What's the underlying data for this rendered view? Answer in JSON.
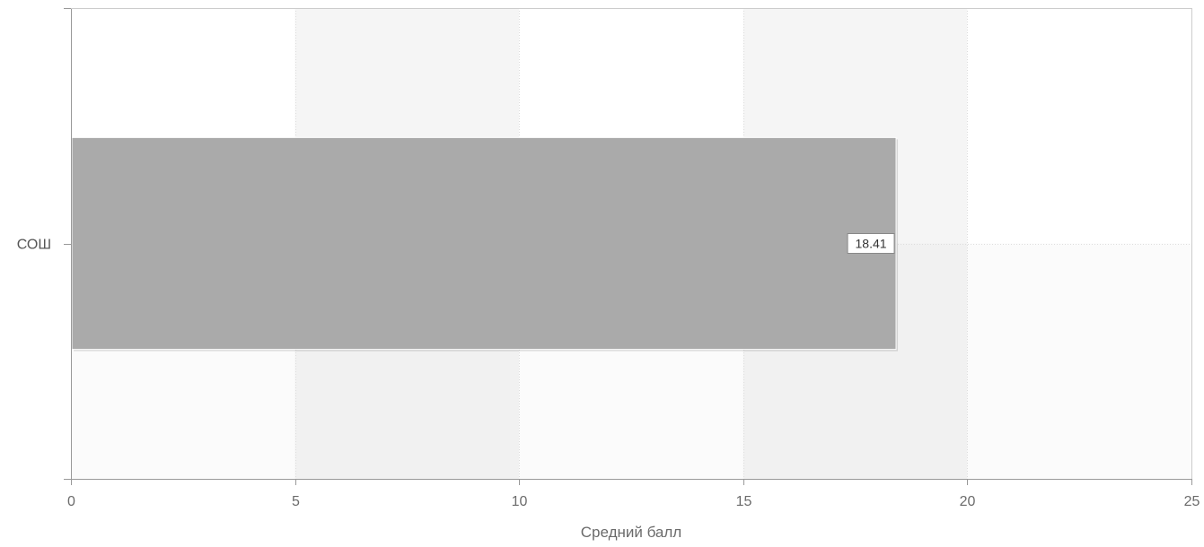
{
  "chart_data": {
    "type": "bar",
    "orientation": "horizontal",
    "title": "",
    "categories": [
      "СОШ"
    ],
    "series": [
      {
        "values": [
          18.41
        ],
        "color": "#aaaaaa"
      }
    ],
    "data_labels": [
      "18.41"
    ],
    "xlabel": "Средний балл",
    "ylabel": "",
    "xlim": [
      0,
      25
    ],
    "x_ticks": [
      0,
      5,
      10,
      15,
      20,
      25
    ],
    "x_tick_labels": [
      "0",
      "5",
      "10",
      "15",
      "20",
      "25"
    ],
    "grid": true,
    "legend": "none",
    "colors": {
      "bar": "#aaaaaa",
      "grid": "#dddddd",
      "axis": "#999999",
      "band_light": "#ffffff",
      "band_shaded": "#f5f5f5"
    }
  }
}
